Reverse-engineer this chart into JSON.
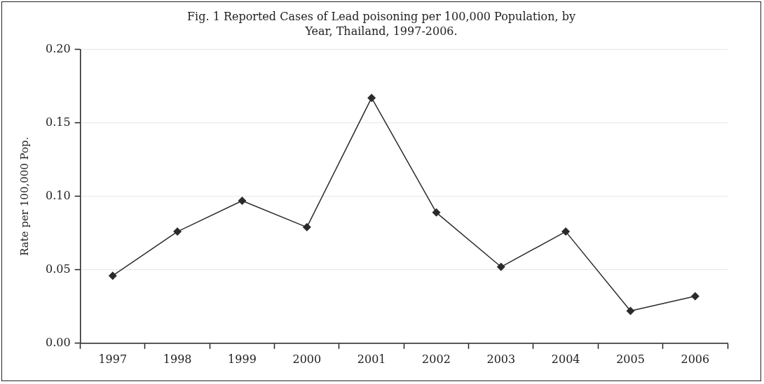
{
  "chart_data": {
    "type": "line",
    "title": "Fig. 1 Reported Cases of Lead poisoning per 100,000 Population, by Year, Thailand, 1997-2006.",
    "ylabel": "Rate per 100,000 Pop.",
    "categories": [
      "1997",
      "1998",
      "1999",
      "2000",
      "2001",
      "2002",
      "2003",
      "2004",
      "2005",
      "2006"
    ],
    "series": [
      {
        "color": "#2b2b2b",
        "values": [
          0.046,
          0.076,
          0.097,
          0.079,
          0.167,
          0.089,
          0.052,
          0.076,
          0.022,
          0.032
        ]
      }
    ],
    "ylim": [
      0,
      0.2
    ],
    "yticks": [
      {
        "value": 0,
        "label": "0.00"
      },
      {
        "value": 0.05,
        "label": "0.05"
      },
      {
        "value": 0.1,
        "label": "0.10"
      },
      {
        "value": 0.15,
        "label": "0.15"
      },
      {
        "value": 0.2,
        "label": "0.20"
      }
    ],
    "grid": "y",
    "marker": "diamond",
    "line_style": "solid",
    "legend": false
  }
}
